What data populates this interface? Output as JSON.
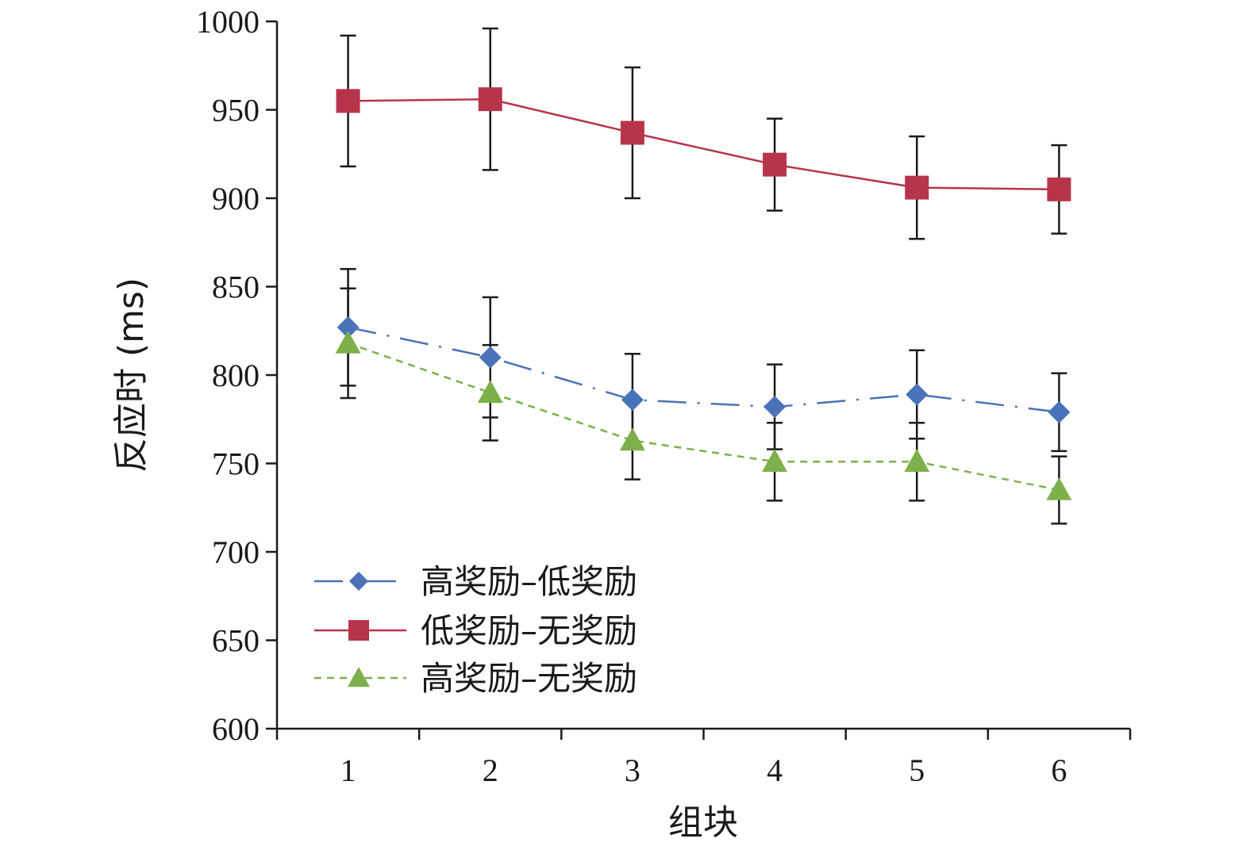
{
  "chart_data": {
    "type": "line",
    "title": "",
    "xlabel": "组块",
    "ylabel": "反应时 (ms)",
    "x": [
      1,
      2,
      3,
      4,
      5,
      6
    ],
    "ylim": [
      600,
      1000
    ],
    "yticks": [
      600,
      650,
      700,
      750,
      800,
      850,
      900,
      950,
      1000
    ],
    "grid": false,
    "legend_position": "bottom-left",
    "series": [
      {
        "name": "高奖励–低奖励",
        "color": "#4a72b8",
        "marker": "diamond",
        "line_style": "dash-dot",
        "values": [
          827,
          810,
          786,
          782,
          789,
          779
        ],
        "errors": [
          33,
          34,
          26,
          24,
          25,
          22
        ]
      },
      {
        "name": "低奖励–无奖励",
        "color": "#b7354a",
        "marker": "square",
        "line_style": "solid",
        "values": [
          955,
          956,
          937,
          919,
          906,
          905
        ],
        "errors": [
          37,
          40,
          37,
          26,
          29,
          25
        ]
      },
      {
        "name": "高奖励–无奖励",
        "color": "#7db04a",
        "marker": "triangle",
        "line_style": "dashed",
        "values": [
          818,
          790,
          763,
          751,
          751,
          735
        ],
        "errors": [
          31,
          27,
          22,
          22,
          22,
          19
        ]
      }
    ]
  }
}
